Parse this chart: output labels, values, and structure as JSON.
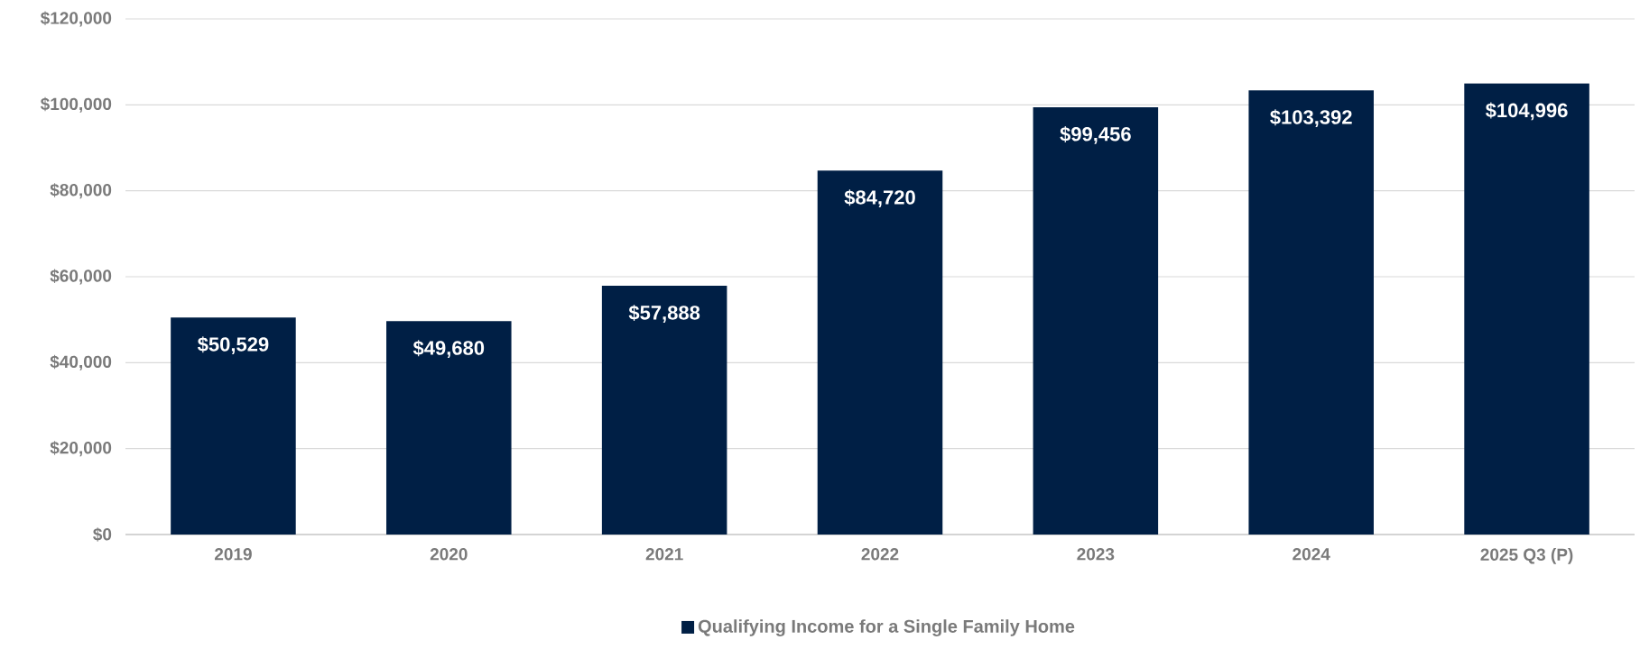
{
  "chart_data": {
    "type": "bar",
    "categories": [
      "2019",
      "2020",
      "2021",
      "2022",
      "2023",
      "2024",
      "2025 Q3 (P)"
    ],
    "series": [
      {
        "name": "Qualifying Income for a Single Family Home",
        "color": "#001f45",
        "values": [
          50529,
          49680,
          57888,
          84720,
          99456,
          103392,
          104996
        ],
        "value_labels": [
          "$50,529",
          "$49,680",
          "$57,888",
          "$84,720",
          "$99,456",
          "$103,392",
          "$104,996"
        ]
      }
    ],
    "ylim": [
      0,
      120000
    ],
    "yticks": [
      {
        "value": 0,
        "label": "$0"
      },
      {
        "value": 20000,
        "label": "$20,000"
      },
      {
        "value": 40000,
        "label": "$40,000"
      },
      {
        "value": 60000,
        "label": "$60,000"
      },
      {
        "value": 80000,
        "label": "$80,000"
      },
      {
        "value": 100000,
        "label": "$100,000"
      },
      {
        "value": 120000,
        "label": "$120,000"
      }
    ],
    "grid": "y",
    "legend": "bottom"
  }
}
